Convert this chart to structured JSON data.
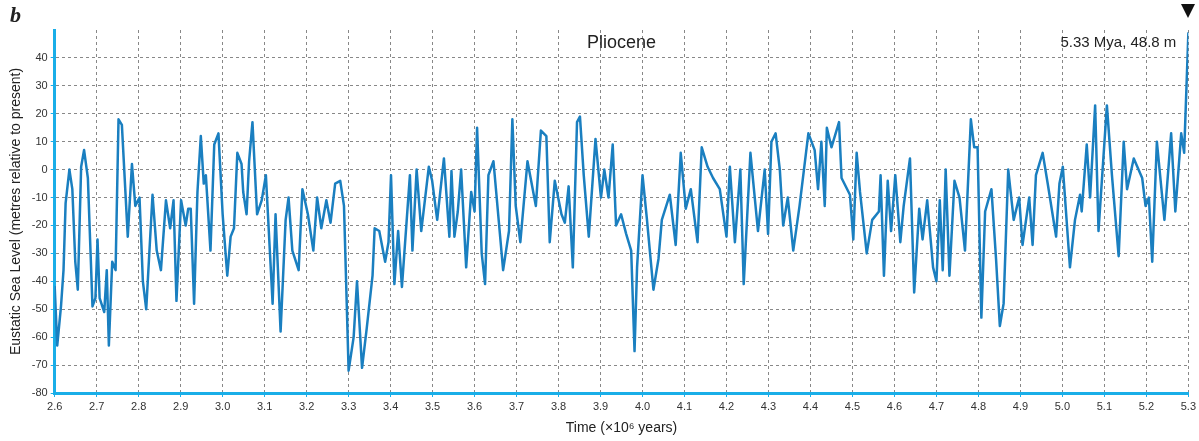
{
  "chart_data": {
    "type": "line",
    "title": "Pliocene",
    "xlabel": "Time (×10⁶ years)",
    "ylabel": "Eustatic Sea Level (metres relative to present)",
    "annotations": [
      "b",
      "5.33 Mya, 48.8 m"
    ],
    "xlim": [
      2.6,
      5.3
    ],
    "ylim": [
      -80,
      50
    ],
    "xticks": [
      2.6,
      2.7,
      2.8,
      2.9,
      {
        "value": 3,
        "label": "3.0"
      },
      3.1,
      3.2,
      3.3,
      3.4,
      3.5,
      3.6,
      3.7,
      3.8,
      3.9,
      {
        "value": 4,
        "label": "4.0"
      },
      4.1,
      4.2,
      4.3,
      4.4,
      4.5,
      4.6,
      4.7,
      4.8,
      4.9,
      {
        "value": 5,
        "label": "5.0"
      },
      5.1,
      5.2,
      5.3
    ],
    "yticks": [
      -80,
      -70,
      -60,
      -50,
      -40,
      -30,
      -20,
      -10,
      0,
      10,
      20,
      30,
      40
    ],
    "grid": true,
    "marker": "none",
    "line_style": "solid",
    "legend": false,
    "series": [
      {
        "color": "#1a7fc0",
        "x": [
          2.6,
          2.606,
          2.615,
          2.621,
          2.626,
          2.635,
          2.642,
          2.649,
          2.655,
          2.663,
          2.67,
          2.679,
          2.69,
          2.697,
          2.702,
          2.707,
          2.718,
          2.724,
          2.729,
          2.737,
          2.745,
          2.752,
          2.76,
          2.774,
          2.784,
          2.792,
          2.802,
          2.81,
          2.818,
          2.833,
          2.843,
          2.853,
          2.865,
          2.875,
          2.883,
          2.89,
          2.901,
          2.912,
          2.918,
          2.924,
          2.932,
          2.94,
          2.948,
          2.955,
          2.96,
          2.971,
          2.98,
          2.99,
          3.0,
          3.011,
          3.019,
          3.027,
          3.035,
          3.045,
          3.049,
          3.057,
          3.063,
          3.071,
          3.082,
          3.093,
          3.103,
          3.119,
          3.126,
          3.138,
          3.15,
          3.157,
          3.166,
          3.181,
          3.19,
          3.203,
          3.216,
          3.225,
          3.235,
          3.247,
          3.257,
          3.268,
          3.28,
          3.289,
          3.3,
          3.312,
          3.32,
          3.332,
          3.343,
          3.357,
          3.362,
          3.373,
          3.387,
          3.395,
          3.401,
          3.409,
          3.418,
          3.427,
          3.446,
          3.452,
          3.462,
          3.473,
          3.491,
          3.499,
          3.511,
          3.527,
          3.54,
          3.545,
          3.552,
          3.56,
          3.568,
          3.58,
          3.592,
          3.6,
          3.606,
          3.617,
          3.625,
          3.633,
          3.645,
          3.668,
          3.682,
          3.69,
          3.698,
          3.709,
          3.726,
          3.746,
          3.758,
          3.771,
          3.779,
          3.791,
          3.807,
          3.815,
          3.824,
          3.834,
          3.844,
          3.851,
          3.86,
          3.872,
          3.888,
          3.901,
          3.909,
          3.919,
          3.929,
          3.937,
          3.949,
          3.961,
          3.973,
          3.981,
          3.987,
          4.0,
          4.01,
          4.026,
          4.038,
          4.046,
          4.065,
          4.079,
          4.091,
          4.103,
          4.115,
          4.131,
          4.141,
          4.155,
          4.168,
          4.184,
          4.2,
          4.208,
          4.22,
          4.233,
          4.241,
          4.257,
          4.275,
          4.291,
          4.299,
          4.307,
          4.317,
          4.327,
          4.335,
          4.346,
          4.359,
          4.374,
          4.395,
          4.41,
          4.418,
          4.426,
          4.434,
          4.439,
          4.45,
          4.468,
          4.474,
          4.494,
          4.502,
          4.51,
          4.518,
          4.534,
          4.547,
          4.563,
          4.567,
          4.575,
          4.584,
          4.592,
          4.602,
          4.614,
          4.622,
          4.637,
          4.647,
          4.659,
          4.667,
          4.678,
          4.692,
          4.7,
          4.708,
          4.715,
          4.722,
          4.731,
          4.743,
          4.755,
          4.768,
          4.782,
          4.79,
          4.798,
          4.807,
          4.816,
          4.831,
          4.842,
          4.851,
          4.86,
          4.871,
          4.884,
          4.897,
          4.905,
          4.921,
          4.929,
          4.937,
          4.953,
          4.965,
          4.985,
          4.993,
          5.001,
          5.018,
          5.03,
          5.042,
          5.046,
          5.058,
          5.066,
          5.078,
          5.086,
          5.106,
          5.118,
          5.134,
          5.146,
          5.154,
          5.17,
          5.19,
          5.198,
          5.206,
          5.214,
          5.225,
          5.243,
          5.259,
          5.269,
          5.283,
          5.29,
          5.3
        ],
        "values": [
          -42,
          -63,
          -49,
          -36,
          -12,
          0,
          -7,
          -33,
          -43,
          1,
          7,
          -3,
          -49,
          -46,
          -25,
          -46,
          -51,
          -36,
          -63,
          -33,
          -36,
          18,
          16,
          -24,
          2,
          -13,
          -10,
          -40,
          -50,
          -9,
          -29,
          -36,
          -11,
          -21,
          -11,
          -47,
          -11,
          -20,
          -14,
          -14,
          -48,
          -8,
          12,
          -5,
          -2,
          -29,
          9,
          13,
          -16,
          -38,
          -24,
          -21,
          6,
          2,
          -8,
          -16,
          3,
          17,
          -16,
          -11,
          -2,
          -48,
          -16,
          -58,
          -18,
          -10,
          -29,
          -36,
          -7,
          -16,
          -29,
          -10,
          -21,
          -11,
          -19,
          -5,
          -4,
          -13,
          -72,
          -60,
          -40,
          -71,
          -57,
          -38,
          -21,
          -22,
          -33,
          -26,
          -2,
          -41,
          -22,
          -42,
          -2,
          -29,
          0,
          -22,
          1,
          -4,
          -18,
          4,
          -24,
          -0.5,
          -24,
          -15,
          0,
          -35,
          -8,
          -15,
          15,
          -30,
          -41,
          -2,
          3,
          -36,
          -22,
          18,
          -13,
          -26,
          3,
          -13,
          14,
          12,
          -26,
          -4,
          -16,
          -19,
          -6,
          -35,
          17,
          19,
          -2,
          -24,
          11,
          -10,
          0,
          -10,
          9,
          -20,
          -16,
          -23,
          -29,
          -65,
          -35,
          -2,
          -17,
          -43,
          -32,
          -18,
          -9,
          -27,
          6,
          -14,
          -7,
          -26,
          8,
          1,
          -3,
          -7,
          -24,
          1,
          -26,
          0,
          -41,
          6,
          -22,
          0,
          -23,
          10,
          13,
          0,
          -20,
          -10,
          -29,
          -13,
          13,
          7,
          -7,
          10,
          -13,
          15,
          8,
          17,
          -3,
          -9,
          -25,
          6,
          -8,
          -30,
          -18,
          -15,
          -2,
          -38,
          -4,
          -22,
          -2,
          -26,
          -13,
          4,
          -44,
          -14,
          -25,
          -11,
          -35,
          -40,
          -11,
          -36,
          0,
          -38,
          -4,
          -10,
          -29,
          18,
          8,
          8,
          -53,
          -15,
          -7,
          -32,
          -56,
          -48,
          0,
          -18,
          -10,
          -27,
          -10,
          -27,
          -2,
          6,
          -5,
          -24,
          -5,
          1,
          -35,
          -18,
          -9,
          -15,
          9,
          -10,
          23,
          -22,
          23,
          -2,
          -31,
          10,
          -7,
          4,
          -3,
          -13,
          -10,
          -33,
          10,
          -18,
          13,
          -15,
          13,
          6,
          48.8
        ]
      }
    ]
  }
}
